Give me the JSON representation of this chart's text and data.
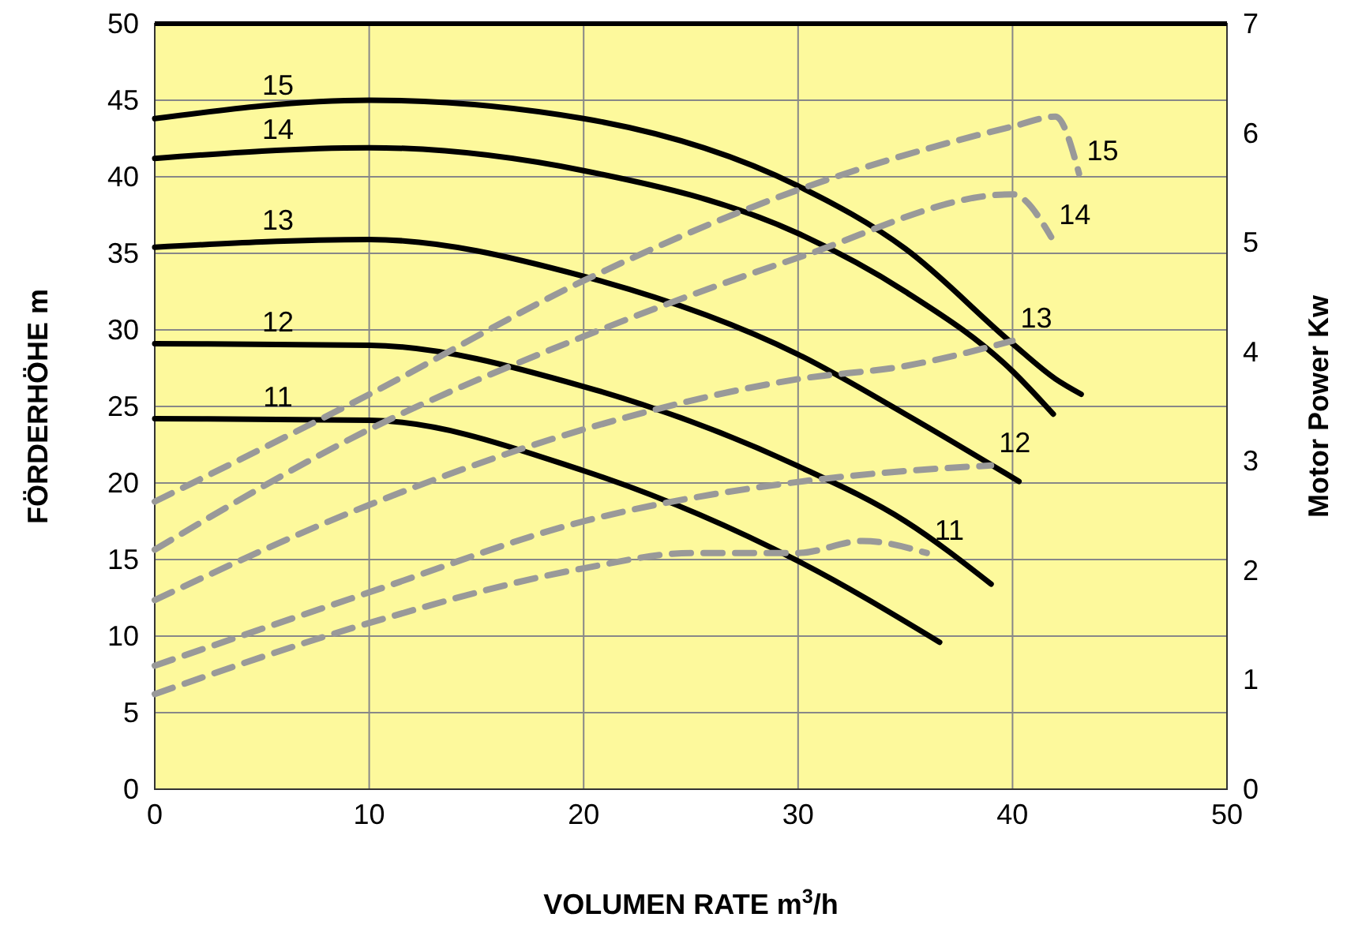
{
  "chart_data": {
    "type": "line",
    "xlabel": "VOLUMEN RATE m$^{3}$/h",
    "ylabel": "FÖRDERHÖHE m",
    "y2label": "Motor Power Kw",
    "xlim": [
      0,
      50
    ],
    "xticks": [
      0,
      10,
      20,
      30,
      40,
      50
    ],
    "ylim": [
      0,
      50
    ],
    "yticks": [
      0,
      5,
      10,
      15,
      20,
      25,
      30,
      35,
      40,
      45,
      50
    ],
    "y2lim": [
      0,
      7
    ],
    "y2ticks": [
      0,
      1,
      2,
      3,
      4,
      5,
      6,
      7
    ],
    "grid": true,
    "marker": "none",
    "series": [
      {
        "name": "15",
        "color": "#000000",
        "line_style": "solid",
        "x": [
          0,
          10,
          20,
          30,
          35,
          40,
          42,
          43.2
        ],
        "values": [
          43.8,
          45.0,
          43.8,
          39.4,
          35.3,
          29.1,
          26.8,
          25.8
        ]
      },
      {
        "name": "14",
        "color": "#000000",
        "line_style": "solid",
        "x": [
          0,
          10,
          20,
          30,
          35,
          40,
          41.9
        ],
        "values": [
          41.2,
          41.9,
          40.4,
          36.3,
          32.5,
          27.3,
          24.5
        ]
      },
      {
        "name": "13",
        "color": "#000000",
        "line_style": "solid",
        "x": [
          0,
          10,
          20,
          30,
          35,
          40.3
        ],
        "values": [
          35.4,
          35.9,
          33.5,
          28.4,
          24.5,
          20.1
        ]
      },
      {
        "name": "12",
        "color": "#000000",
        "line_style": "solid",
        "x": [
          0,
          10,
          20,
          30,
          35,
          39
        ],
        "values": [
          29.1,
          29.0,
          26.3,
          21.1,
          17.5,
          13.4
        ]
      },
      {
        "name": "11",
        "color": "#000000",
        "line_style": "solid",
        "x": [
          0,
          10,
          20,
          30,
          36.6
        ],
        "values": [
          24.2,
          24.1,
          20.8,
          14.9,
          9.6
        ]
      },
      {
        "name": "15",
        "color": "#999999",
        "line_style": "dashed",
        "axis": "y2",
        "x": [
          0,
          10,
          20,
          30,
          40,
          42,
          43.1
        ],
        "values": [
          2.63,
          3.61,
          4.65,
          5.48,
          6.06,
          6.15,
          5.63
        ]
      },
      {
        "name": "14",
        "color": "#999999",
        "line_style": "dashed",
        "axis": "y2",
        "x": [
          0,
          10,
          20,
          30,
          40,
          41.8
        ],
        "values": [
          2.19,
          3.29,
          4.14,
          4.86,
          5.44,
          5.05
        ]
      },
      {
        "name": "13",
        "color": "#999999",
        "line_style": "dashed",
        "axis": "y2",
        "x": [
          0,
          10,
          20,
          30,
          35,
          40
        ],
        "values": [
          1.73,
          2.6,
          3.29,
          3.75,
          3.87,
          4.1
        ]
      },
      {
        "name": "12",
        "color": "#999999",
        "line_style": "dashed",
        "axis": "y2",
        "x": [
          0,
          10,
          20,
          30,
          35,
          39
        ],
        "values": [
          1.13,
          1.8,
          2.45,
          2.81,
          2.91,
          2.96
        ]
      },
      {
        "name": "11",
        "color": "#999999",
        "line_style": "dashed",
        "axis": "y2",
        "x": [
          0,
          10,
          20,
          25,
          30,
          33,
          36
        ],
        "values": [
          0.87,
          1.52,
          2.02,
          2.16,
          2.16,
          2.27,
          2.16
        ]
      }
    ]
  }
}
